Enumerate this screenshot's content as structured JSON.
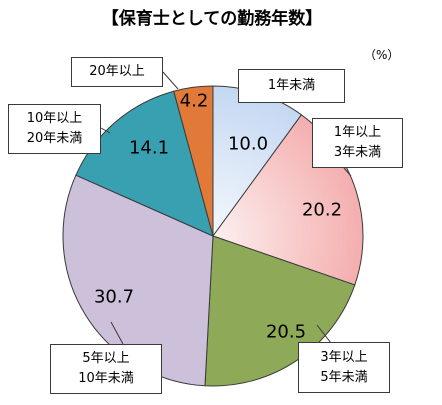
{
  "chart_data": {
    "type": "pie",
    "title": "【保育士としての勤務年数】",
    "unit": "（%）",
    "categories": [
      "1年未満",
      "1年以上\n3年未満",
      "3年以上\n5年未満",
      "5年以上\n10年未満",
      "10年以上\n20年未満",
      "20年以上"
    ],
    "values": [
      10.0,
      20.2,
      20.5,
      30.7,
      14.1,
      4.2
    ],
    "colors": [
      "#c4d8f2",
      "#f4aeae",
      "#8eaa58",
      "#ccc0da",
      "#38a0b1",
      "#e17a38"
    ],
    "gradient_fill": [
      true,
      true,
      false,
      false,
      false,
      false
    ]
  }
}
